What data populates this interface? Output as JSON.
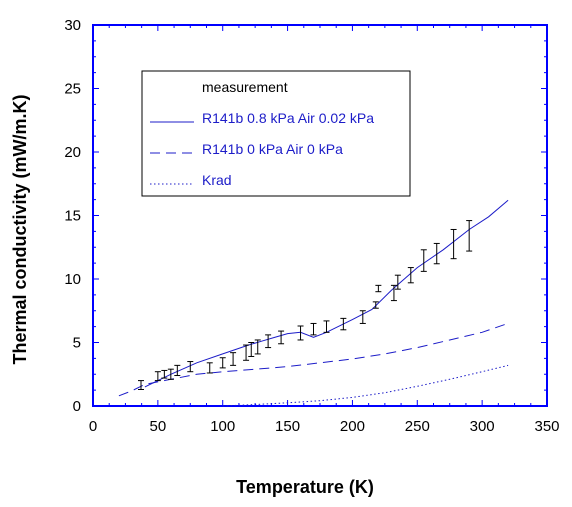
{
  "chart_data": {
    "type": "line",
    "title": "",
    "xlabel": "Temperature (K)",
    "ylabel": "Thermal conductivity (mW/m.K)",
    "xlim": [
      0,
      350
    ],
    "ylim": [
      0,
      30
    ],
    "xticks": [
      0,
      50,
      100,
      150,
      200,
      250,
      300,
      350
    ],
    "yticks": [
      0,
      5,
      10,
      15,
      20,
      25,
      30
    ],
    "grid": false,
    "legend_position": "upper-left inside",
    "colors": {
      "frame": "#0000ff",
      "series": "#1c1cc8",
      "measurement": "#000000",
      "legend_text": "#1c1cc8",
      "legend_measurement_text": "#000000"
    },
    "series": [
      {
        "name": "measurement",
        "style": "error-bars",
        "points": [
          {
            "x": 37,
            "y_low": 1.3,
            "y_high": 2.0
          },
          {
            "x": 50,
            "y_low": 2.0,
            "y_high": 2.7
          },
          {
            "x": 55,
            "y_low": 2.2,
            "y_high": 2.8
          },
          {
            "x": 60,
            "y_low": 2.1,
            "y_high": 2.9
          },
          {
            "x": 65,
            "y_low": 2.4,
            "y_high": 3.2
          },
          {
            "x": 75,
            "y_low": 2.7,
            "y_high": 3.5
          },
          {
            "x": 90,
            "y_low": 2.6,
            "y_high": 3.4
          },
          {
            "x": 100,
            "y_low": 3.0,
            "y_high": 3.8
          },
          {
            "x": 108,
            "y_low": 3.2,
            "y_high": 4.2
          },
          {
            "x": 118,
            "y_low": 3.6,
            "y_high": 4.8
          },
          {
            "x": 122,
            "y_low": 3.9,
            "y_high": 5.0
          },
          {
            "x": 127,
            "y_low": 4.1,
            "y_high": 5.2
          },
          {
            "x": 135,
            "y_low": 4.6,
            "y_high": 5.6
          },
          {
            "x": 145,
            "y_low": 4.9,
            "y_high": 5.9
          },
          {
            "x": 160,
            "y_low": 5.2,
            "y_high": 6.3
          },
          {
            "x": 170,
            "y_low": 5.6,
            "y_high": 6.5
          },
          {
            "x": 180,
            "y_low": 5.8,
            "y_high": 6.7
          },
          {
            "x": 193,
            "y_low": 6.0,
            "y_high": 6.9
          },
          {
            "x": 208,
            "y_low": 6.5,
            "y_high": 7.5
          },
          {
            "x": 218,
            "y_low": 7.7,
            "y_high": 8.2
          },
          {
            "x": 220,
            "y_low": 9.0,
            "y_high": 9.5
          },
          {
            "x": 232,
            "y_low": 8.3,
            "y_high": 9.5
          },
          {
            "x": 235,
            "y_low": 9.2,
            "y_high": 10.3
          },
          {
            "x": 245,
            "y_low": 9.7,
            "y_high": 10.9
          },
          {
            "x": 255,
            "y_low": 10.6,
            "y_high": 12.3
          },
          {
            "x": 265,
            "y_low": 11.2,
            "y_high": 12.8
          },
          {
            "x": 278,
            "y_low": 11.6,
            "y_high": 13.9
          },
          {
            "x": 290,
            "y_low": 12.2,
            "y_high": 14.6
          }
        ]
      },
      {
        "name": "R141b 0.8 kPa Air 0.02 kPa",
        "style": "solid",
        "x": [
          40,
          60,
          80,
          100,
          120,
          130,
          140,
          150,
          160,
          170,
          180,
          200,
          215,
          230,
          250,
          270,
          290,
          305,
          320
        ],
        "y": [
          1.5,
          2.5,
          3.4,
          4.1,
          4.8,
          5.1,
          5.4,
          5.7,
          5.8,
          5.4,
          5.8,
          6.8,
          7.6,
          9.1,
          10.9,
          12.3,
          13.9,
          14.9,
          16.2
        ]
      },
      {
        "name": "R141b 0 kPa Air 0 kPa",
        "style": "dashed",
        "x": [
          20,
          30,
          40,
          60,
          80,
          100,
          125,
          150,
          175,
          200,
          225,
          250,
          275,
          300,
          320
        ],
        "y": [
          0.8,
          1.2,
          1.7,
          2.1,
          2.5,
          2.7,
          2.9,
          3.1,
          3.4,
          3.7,
          4.1,
          4.6,
          5.2,
          5.8,
          6.5
        ]
      },
      {
        "name": "Krad",
        "style": "dotted",
        "x": [
          100,
          125,
          150,
          175,
          200,
          225,
          250,
          275,
          300,
          320
        ],
        "y": [
          0.0,
          0.12,
          0.25,
          0.42,
          0.68,
          1.05,
          1.55,
          2.1,
          2.7,
          3.2
        ]
      }
    ]
  }
}
